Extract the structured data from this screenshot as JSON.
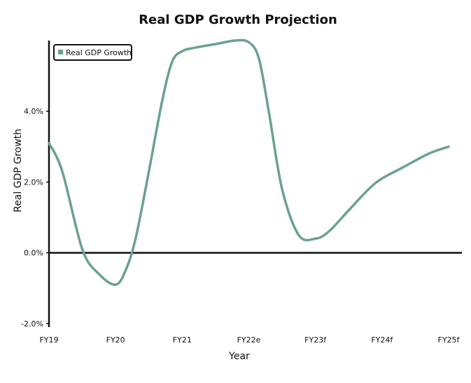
{
  "chart_data": {
    "type": "line",
    "title": "Real GDP Growth Projection",
    "xlabel": "Year",
    "ylabel": "Real GDP Growth",
    "categories": [
      "FY19",
      "FY20",
      "FY21",
      "FY22e",
      "FY23f",
      "FY24f",
      "FY25f"
    ],
    "series": [
      {
        "name": "Real GDP Growth",
        "color": "#6aa38a",
        "x": [
          0,
          0.2,
          0.5,
          0.75,
          1.0,
          1.15,
          1.3,
          1.5,
          1.7,
          1.85,
          2.0,
          2.2,
          2.5,
          2.8,
          3.0,
          3.15,
          3.3,
          3.5,
          3.75,
          4.0,
          4.2,
          4.5,
          4.8,
          5.0,
          5.3,
          5.7,
          6.0
        ],
        "values": [
          3.1,
          2.3,
          0.1,
          -0.6,
          -0.9,
          -0.5,
          0.4,
          2.3,
          4.3,
          5.4,
          5.7,
          5.8,
          5.9,
          6.0,
          5.95,
          5.5,
          4.0,
          1.8,
          0.5,
          0.4,
          0.6,
          1.2,
          1.8,
          2.1,
          2.4,
          2.8,
          3.0
        ]
      }
    ],
    "yticks": [
      "-2.0%",
      "0.0%",
      "2.0%",
      "4.0%"
    ],
    "ytick_values": [
      -2,
      0,
      2,
      4
    ],
    "ylim": [
      -2.1,
      6.0
    ],
    "xlim": [
      0,
      6.2
    ],
    "legend": "top-left",
    "grid": false,
    "zero_line": true
  }
}
